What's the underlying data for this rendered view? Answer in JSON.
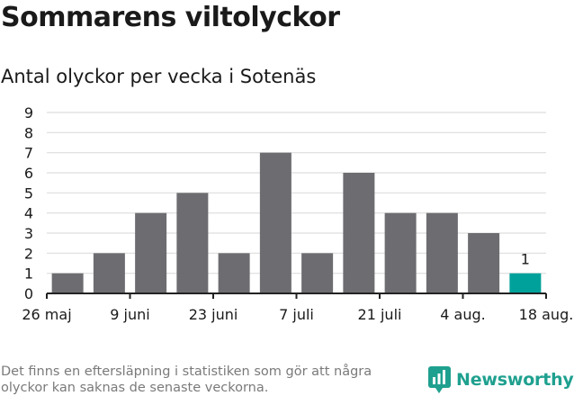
{
  "chart_data": {
    "type": "bar",
    "title": "Sommarens viltolyckor",
    "subtitle": "Antal olyckor per vecka i Sotenäs",
    "xlabel": "",
    "ylabel": "",
    "ylim": [
      0,
      9
    ],
    "yticks": [
      "0",
      "1",
      "2",
      "3",
      "4",
      "5",
      "6",
      "7",
      "8",
      "9"
    ],
    "xtick_labels": [
      "26 maj",
      "9 juni",
      "23 juni",
      "7 juli",
      "21 juli",
      "4 aug.",
      "18 aug."
    ],
    "values": [
      1,
      2,
      4,
      5,
      2,
      7,
      2,
      6,
      4,
      4,
      3,
      1
    ],
    "highlight_index": 11,
    "highlight_label": "1",
    "grid": true,
    "legend": "none",
    "colors": {
      "bar": "#6d6c70",
      "highlight": "#00a19a",
      "grid": "#dddddd",
      "axis": "#222222"
    }
  },
  "footnote": "Det finns en eftersläpning i statistiken som gör att några olyckor kan saknas de senaste veckorna.",
  "logo": {
    "text": "Newsworthy",
    "icon": "newsworthy-logo-icon",
    "color": "#1fa08f"
  }
}
